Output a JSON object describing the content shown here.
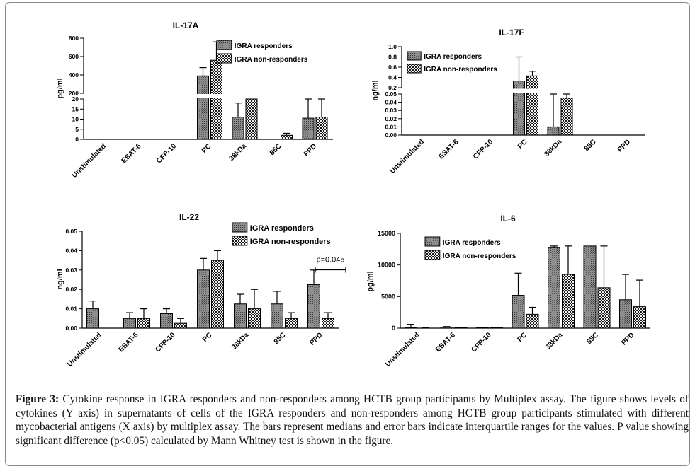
{
  "colors": {
    "responders": "#7a7a7a",
    "non_responders": "#d9d9d9",
    "ink": "#000000",
    "caption": "#111111"
  },
  "legend": {
    "responders": "IGRA responders",
    "non_responders": "IGRA non-responders"
  },
  "caption": {
    "label": "Figure 3:",
    "text": "Cytokine response in IGRA responders and non-responders among HCTB group participants by Multiplex assay. The figure shows levels of cytokines (Y axis) in supernatants of cells of the IGRA responders and non-responders among HCTB group participants stimulated with different mycobacterial antigens (X axis) by multiplex assay. The bars represent medians and error bars indicate interquartile ranges for the values. P value showing significant difference (p<0.05) calculated by Mann Whitney test is shown in the figure."
  },
  "chart_data": [
    {
      "type": "bar",
      "title": "IL-17A",
      "ylabel": "pg/ml",
      "xlabel": "",
      "categories": [
        "Unstimulated",
        "ESAT-6",
        "CFP-10",
        "PC",
        "38kDa",
        "85C",
        "PPD"
      ],
      "axis_break": true,
      "lower_ylim": [
        0,
        20
      ],
      "lower_ticks": [
        0,
        5,
        10,
        15,
        20
      ],
      "upper_ylim": [
        200,
        800
      ],
      "upper_ticks": [
        200,
        400,
        600,
        800
      ],
      "series": [
        {
          "name": "IGRA responders",
          "values": [
            0,
            0,
            0,
            390,
            11,
            0,
            10.5
          ],
          "errors": [
            0,
            0,
            0,
            480,
            18,
            0,
            20
          ]
        },
        {
          "name": "IGRA non-responders",
          "values": [
            0,
            0,
            0,
            560,
            20,
            2,
            11
          ],
          "errors": [
            0,
            0,
            0,
            760,
            20,
            3,
            20
          ]
        }
      ],
      "annotations": []
    },
    {
      "type": "bar",
      "title": "IL-17F",
      "ylabel": "ng/ml",
      "xlabel": "",
      "categories": [
        "Unstimulated",
        "ESAT-6",
        "CFP-10",
        "PC",
        "38kDa",
        "85C",
        "PPD"
      ],
      "axis_break": true,
      "lower_ylim": [
        0,
        0.05
      ],
      "lower_ticks": [
        "0.00",
        "0.01",
        "0.02",
        "0.03",
        "0.04",
        "0.05"
      ],
      "upper_ylim": [
        0.2,
        1.0
      ],
      "upper_ticks": [
        "0.2",
        "0.4",
        "0.6",
        "0.8",
        "1.0"
      ],
      "series": [
        {
          "name": "IGRA responders",
          "values": [
            0,
            0,
            0,
            0.33,
            0.01,
            0,
            0
          ],
          "errors": [
            0,
            0,
            0,
            0.8,
            0.05,
            0,
            0
          ]
        },
        {
          "name": "IGRA non-responders",
          "values": [
            0,
            0,
            0,
            0.43,
            0.045,
            0,
            0
          ],
          "errors": [
            0,
            0,
            0,
            0.52,
            0.05,
            0,
            0
          ]
        }
      ],
      "annotations": []
    },
    {
      "type": "bar",
      "title": "IL-22",
      "ylabel": "ng/ml",
      "xlabel": "",
      "categories": [
        "Unstimulated",
        "ESAT-6",
        "CFP-10",
        "PC",
        "38kDa",
        "85C",
        "PPD"
      ],
      "axis_break": false,
      "ylim": [
        0,
        0.05
      ],
      "ticks": [
        "0.00",
        "0.01",
        "0.02",
        "0.03",
        "0.04",
        "0.05"
      ],
      "series": [
        {
          "name": "IGRA responders",
          "values": [
            0.01,
            0.005,
            0.0075,
            0.03,
            0.0125,
            0.0125,
            0.0225
          ],
          "errors": [
            0.014,
            0.008,
            0.01,
            0.036,
            0.0175,
            0.019,
            0.03
          ]
        },
        {
          "name": "IGRA non-responders",
          "values": [
            0,
            0.005,
            0.0025,
            0.035,
            0.01,
            0.005,
            0.005
          ],
          "errors": [
            0,
            0.01,
            0.005,
            0.04,
            0.02,
            0.008,
            0.008
          ]
        }
      ],
      "annotations": [
        {
          "text": "p=0.045",
          "category": "PPD",
          "y": 0.033
        }
      ]
    },
    {
      "type": "bar",
      "title": "IL-6",
      "ylabel": "pg/ml",
      "xlabel": "",
      "categories": [
        "Unstimulated",
        "ESAT-6",
        "CFP-10",
        "PC",
        "38kDa",
        "85C",
        "PPD"
      ],
      "axis_break": false,
      "ylim": [
        0,
        15000
      ],
      "ticks": [
        "0",
        "5000",
        "10000",
        "15000"
      ],
      "series": [
        {
          "name": "IGRA responders",
          "values": [
            100,
            150,
            100,
            5200,
            12800,
            13000,
            4500
          ],
          "errors": [
            600,
            250,
            150,
            8700,
            13000,
            13000,
            8500
          ]
        },
        {
          "name": "IGRA non-responders",
          "values": [
            50,
            100,
            80,
            2200,
            8500,
            6400,
            3400
          ],
          "errors": [
            80,
            150,
            120,
            3300,
            13000,
            13000,
            7600
          ]
        }
      ],
      "annotations": []
    }
  ]
}
